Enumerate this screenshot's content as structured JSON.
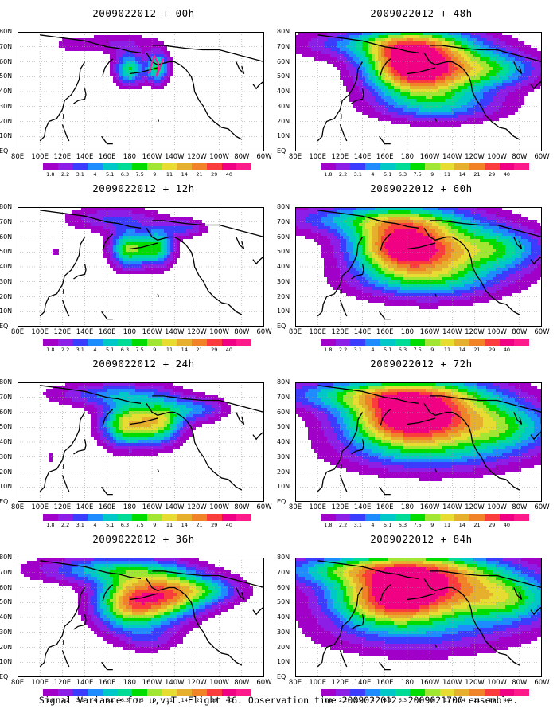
{
  "caption": "Signal Variance for u,v,T. Flight 16. Observation time 2009022012. 2009021700 ensemble.",
  "axes": {
    "lon_labels": [
      "80E",
      "100E",
      "120E",
      "140E",
      "160E",
      "180",
      "160W",
      "140W",
      "120W",
      "100W",
      "80W",
      "60W"
    ],
    "lat_labels": [
      "80N",
      "70N",
      "60N",
      "50N",
      "40N",
      "30N",
      "20N",
      "10N",
      "EQ"
    ],
    "lon_range": [
      80,
      300
    ],
    "lat_range": [
      0,
      80
    ],
    "grid": "dotted"
  },
  "colorbar": {
    "ticks": [
      "1.8",
      "2.2",
      "3.1",
      "4",
      "5.1",
      "6.3",
      "7.5",
      "9",
      "11",
      "14",
      "21",
      "29",
      "40"
    ],
    "colors": [
      "#a000c8",
      "#8c1ee6",
      "#3c3cff",
      "#1e8cff",
      "#00c8c8",
      "#00dc96",
      "#00dc00",
      "#a0e632",
      "#e6dc32",
      "#e6af2d",
      "#f08228",
      "#fa3c3c",
      "#f00082"
    ]
  },
  "panels": [
    {
      "title": "2009022012 + 00h",
      "level": 0
    },
    {
      "title": "2009022012 + 48h",
      "level": 4
    },
    {
      "title": "2009022012 + 12h",
      "level": 1
    },
    {
      "title": "2009022012 + 60h",
      "level": 5
    },
    {
      "title": "2009022012 + 24h",
      "level": 2
    },
    {
      "title": "2009022012 + 72h",
      "level": 6
    },
    {
      "title": "2009022012 + 36h",
      "level": 3
    },
    {
      "title": "2009022012 + 84h",
      "level": 7
    }
  ]
}
